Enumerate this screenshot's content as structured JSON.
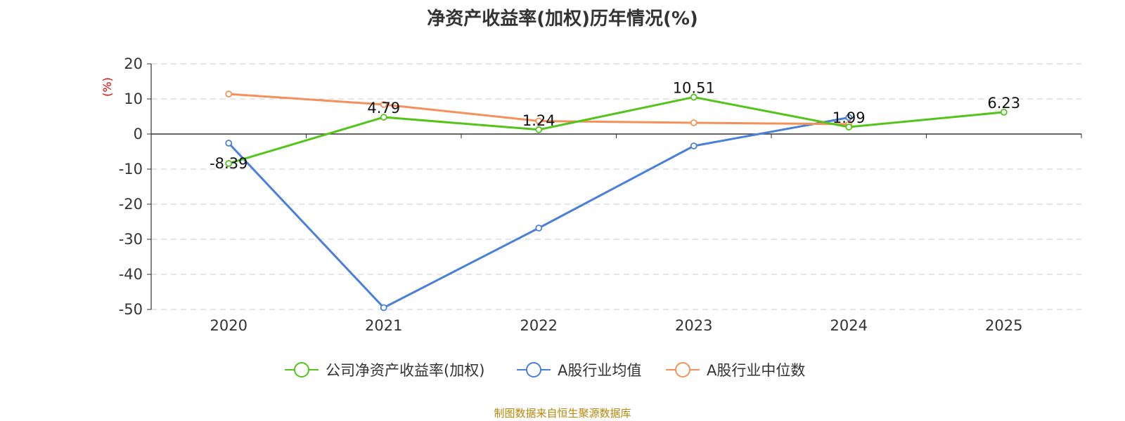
{
  "chart_data": {
    "type": "line",
    "title": "净资产收益率(加权)历年情况(%)",
    "ylabel": "(%)",
    "xlabel": "",
    "categories": [
      "2020",
      "2021",
      "2022",
      "2023",
      "2024",
      "2025"
    ],
    "ylim": [
      -50,
      20
    ],
    "yticks": [
      20,
      10,
      0,
      -10,
      -20,
      -30,
      -40,
      -50
    ],
    "grid": true,
    "legend_position": "bottom",
    "series": [
      {
        "name": "公司净资产收益率(加权)",
        "color": "#52c41a",
        "values": [
          -8.39,
          4.79,
          1.24,
          10.51,
          1.99,
          6.23
        ],
        "labels": [
          "-8.39",
          "4.79",
          "1.24",
          "10.51",
          "1.99",
          "6.23"
        ]
      },
      {
        "name": "A股行业均值",
        "color": "#4a7fdb",
        "values": [
          -2.6,
          -49.5,
          -26.8,
          -3.4,
          4.7,
          null
        ]
      },
      {
        "name": "A股行业中位数",
        "color": "#f4915a",
        "values": [
          11.4,
          8.4,
          3.7,
          3.2,
          2.8,
          null
        ]
      }
    ]
  },
  "footer": {
    "source": "制图数据来自恒生聚源数据库"
  }
}
